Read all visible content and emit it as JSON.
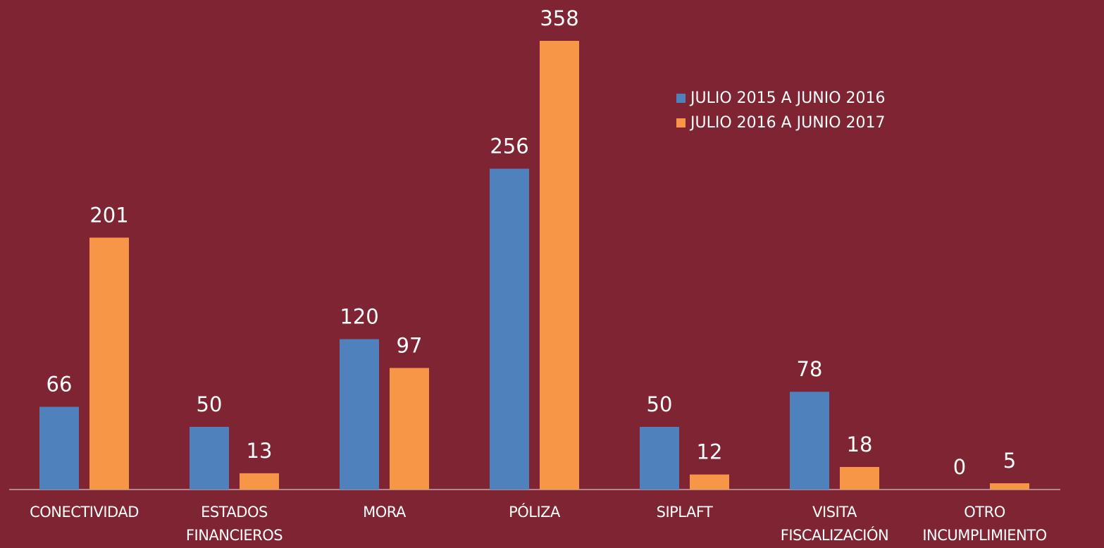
{
  "chart_data": {
    "type": "bar",
    "categories": [
      "CONECTIVIDAD",
      "ESTADOS FINANCIEROS",
      "MORA",
      "PÓLIZA",
      "SIPLAFT",
      "VISITA FISCALIZACIÓN",
      "OTRO INCUMPLIMIENTO"
    ],
    "series": [
      {
        "name": "JULIO 2015 A JUNIO 2016",
        "color": "#4f81bd",
        "values": [
          66,
          50,
          120,
          256,
          50,
          78,
          0
        ]
      },
      {
        "name": "JULIO 2016 A JUNIO 2017",
        "color": "#f79646",
        "values": [
          201,
          13,
          97,
          358,
          12,
          18,
          5
        ]
      }
    ],
    "legend": "upper right"
  }
}
